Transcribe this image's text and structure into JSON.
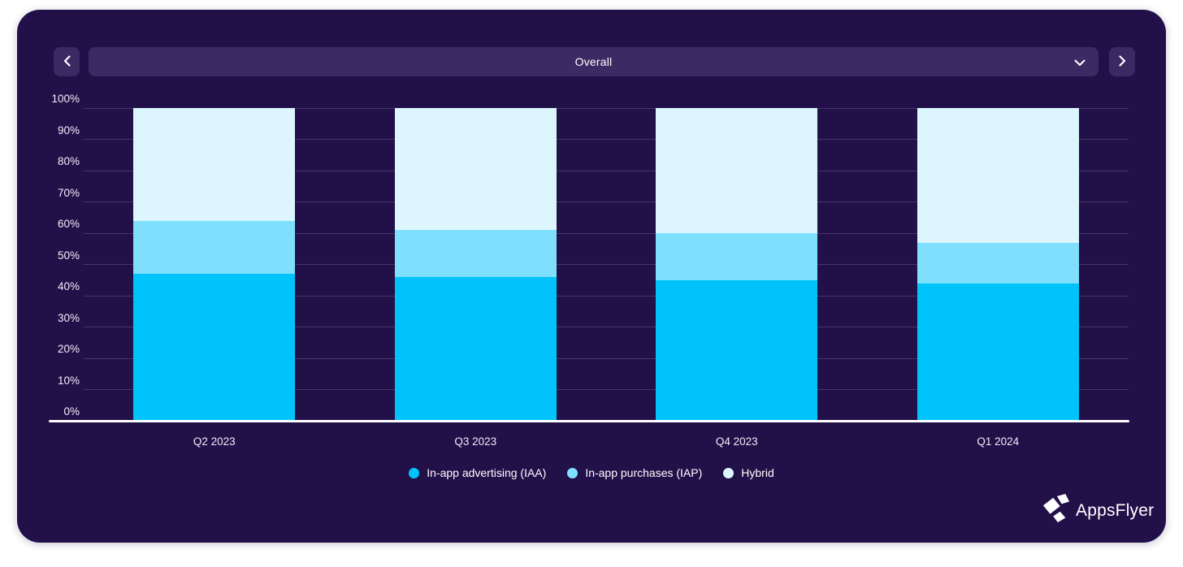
{
  "page": {
    "background": "#ffffff",
    "card_background": "#221049",
    "control_background": "#3b2a64",
    "gridline_color": "rgba(255,255,255,0.16)",
    "axis_color": "#ffffff",
    "text_color": "#ffffff"
  },
  "toolbar": {
    "prev_icon": "chevron-left",
    "next_icon": "chevron-right",
    "selector_value": "Overall",
    "selector_icon": "chevron-down"
  },
  "chart_data": {
    "type": "bar",
    "stacked": true,
    "stack_total": 100,
    "unit": "%",
    "categories": [
      "Q2 2023",
      "Q3 2023",
      "Q4 2023",
      "Q1 2024"
    ],
    "series": [
      {
        "name": "In-app advertising (IAA)",
        "color": "#00c3fc",
        "values": [
          47,
          46,
          45,
          44
        ]
      },
      {
        "name": "In-app purchases (IAP)",
        "color": "#7fe0fd",
        "values": [
          17,
          15,
          15,
          13
        ]
      },
      {
        "name": "Hybrid",
        "color": "#ddf6fe",
        "values": [
          36,
          39,
          40,
          43
        ]
      }
    ],
    "ylim": [
      0,
      100
    ],
    "y_tick_step": 10,
    "y_tick_suffix": "%",
    "grid": true,
    "legend_position": "bottom",
    "title": "",
    "xlabel": "",
    "ylabel": ""
  },
  "branding": {
    "logo_icon": "appsflyer-pinwheel",
    "logo_text": "AppsFlyer"
  }
}
